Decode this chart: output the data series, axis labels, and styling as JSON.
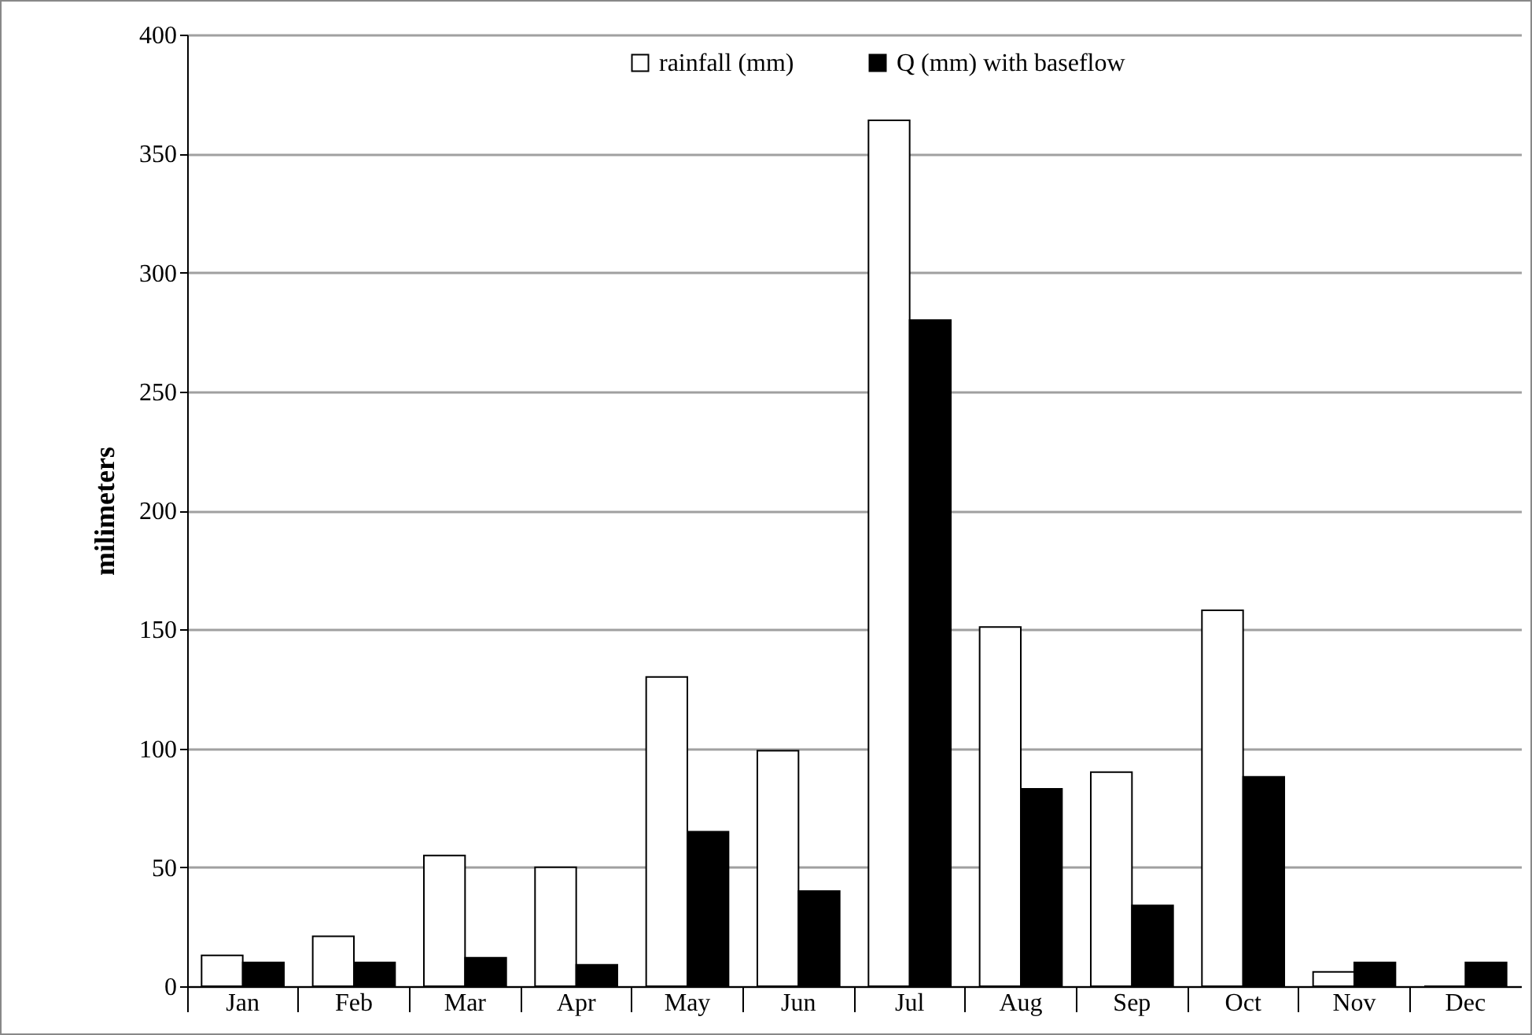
{
  "chart_data": {
    "type": "bar",
    "ylabel": "milimeters",
    "categories": [
      "Jan",
      "Feb",
      "Mar",
      "Apr",
      "May",
      "Jun",
      "Jul",
      "Aug",
      "Sep",
      "Oct",
      "Nov",
      "Dec"
    ],
    "series": [
      {
        "name": "rainfall (mm)",
        "color": "#ffffff",
        "values": [
          13,
          21,
          55,
          50,
          130,
          99,
          364,
          151,
          90,
          158,
          6,
          0
        ]
      },
      {
        "name": "Q (mm) with baseflow",
        "color": "#000000",
        "values": [
          10,
          10,
          12,
          9,
          65,
          40,
          280,
          83,
          34,
          88,
          10,
          10
        ]
      }
    ],
    "ylim": [
      0,
      400
    ],
    "yticks": [
      0,
      50,
      100,
      150,
      200,
      250,
      300,
      350,
      400
    ],
    "grid": "y",
    "legend": "top"
  }
}
